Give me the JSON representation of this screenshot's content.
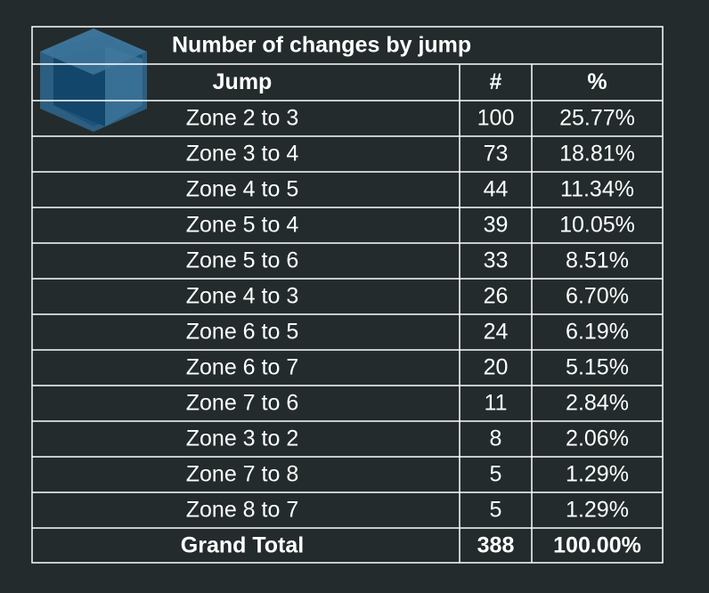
{
  "table": {
    "title": "Number of changes by jump",
    "header": [
      "Jump",
      "#",
      "%"
    ],
    "rows": [
      [
        "Zone 2 to 3",
        100,
        "25.77%"
      ],
      [
        "Zone 3 to 4",
        73,
        "18.81%"
      ],
      [
        "Zone 4 to 5",
        44,
        "11.34%"
      ],
      [
        "Zone 5 to 4",
        39,
        "10.05%"
      ],
      [
        "Zone 5 to 6",
        33,
        "8.51%"
      ],
      [
        "Zone 4 to 3",
        26,
        "6.70%"
      ],
      [
        "Zone 6 to 5",
        24,
        "6.19%"
      ],
      [
        "Zone 6 to 7",
        20,
        "5.15%"
      ],
      [
        "Zone 7 to 6",
        11,
        "2.84%"
      ],
      [
        "Zone 3 to 2",
        8,
        "2.06%"
      ],
      [
        "Zone 7 to 8",
        5,
        "1.29%"
      ],
      [
        "Zone 8 to 7",
        5,
        "1.29%"
      ]
    ],
    "total": [
      "Grand Total",
      388,
      "100.00%"
    ]
  }
}
